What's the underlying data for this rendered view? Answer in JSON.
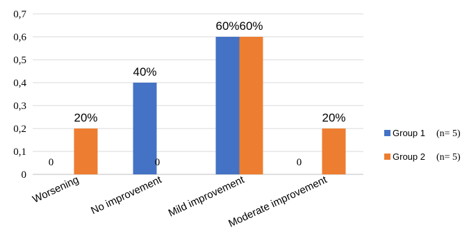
{
  "chart_data": {
    "type": "bar",
    "categories": [
      "Worsening",
      "No improvement",
      "Mild improvement",
      "Moderate improvement"
    ],
    "series": [
      {
        "name": "Group 1",
        "legend_suffix": "(n= 5)",
        "values": [
          0,
          0.4,
          0.6,
          0
        ],
        "labels": [
          "0",
          "40%",
          "60%",
          "0"
        ],
        "color": "#4472C4"
      },
      {
        "name": "Group 2",
        "legend_suffix": "(n= 5)",
        "values": [
          0.2,
          0,
          0.6,
          0.2
        ],
        "labels": [
          "20%",
          "0",
          "60%",
          "20%"
        ],
        "color": "#ED7D31"
      }
    ],
    "yticks": [
      "0",
      "0,1",
      "0,2",
      "0,3",
      "0,4",
      "0,5",
      "0,6",
      "0,7"
    ],
    "ylim": [
      0,
      0.7
    ],
    "grid": true,
    "legend_position": "right",
    "title": "",
    "xlabel": "",
    "ylabel": ""
  }
}
